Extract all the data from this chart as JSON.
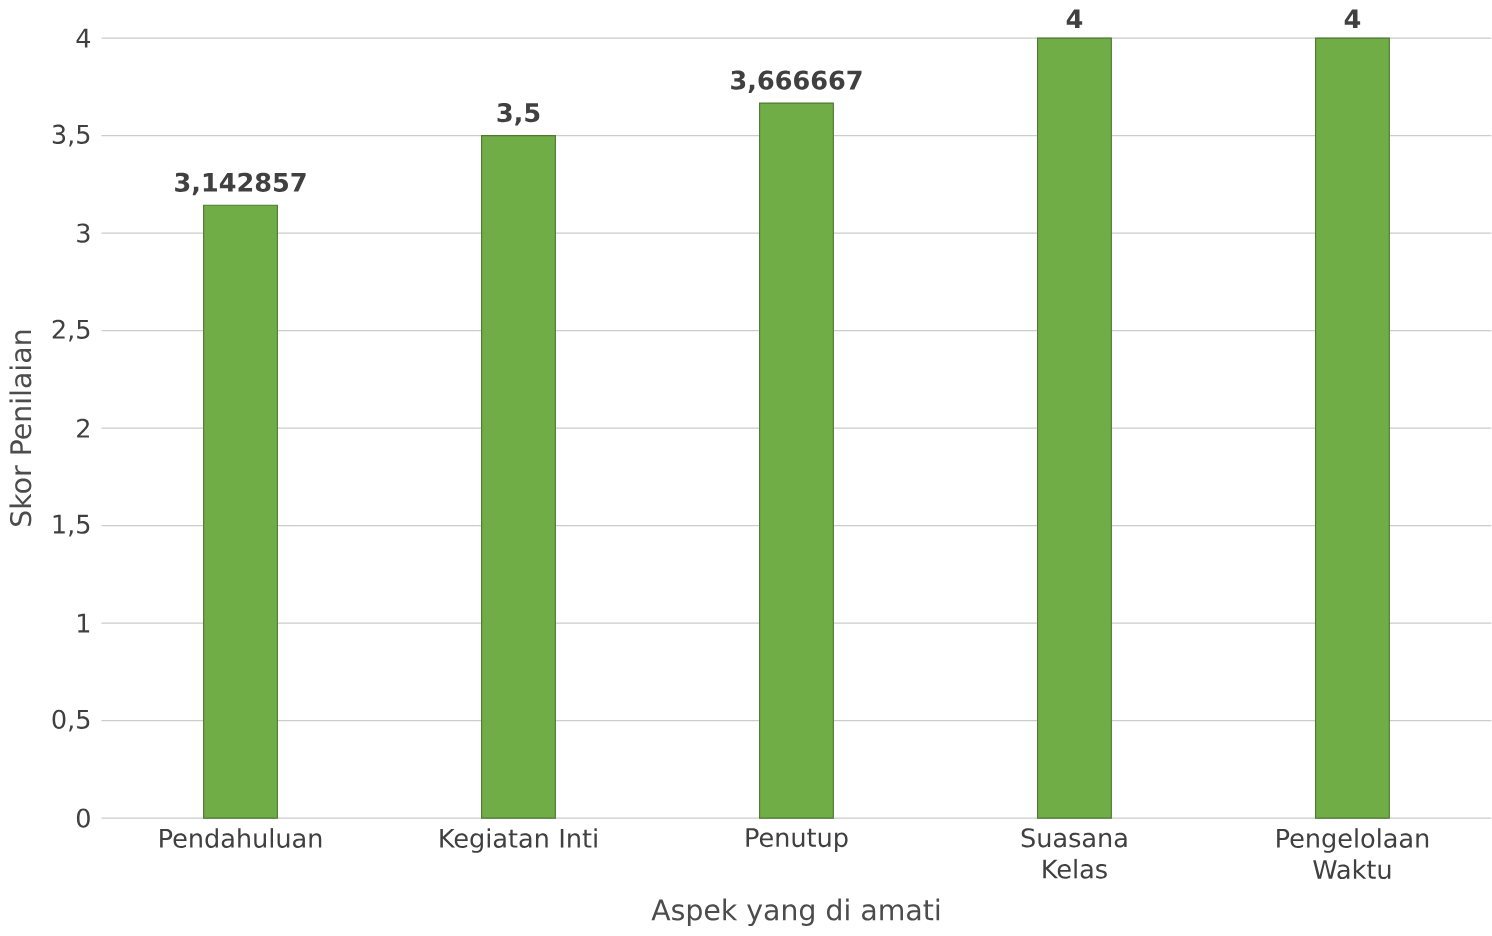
{
  "chart_data": {
    "type": "bar",
    "xlabel": "Aspek yang di amati",
    "ylabel": "Skor Penilaian",
    "categories": [
      "Pendahuluan",
      "Kegiatan Inti",
      "Penutup",
      "Suasana Kelas",
      "Pengelolaan Waktu"
    ],
    "values": [
      3.142857,
      3.5,
      3.666667,
      4,
      4
    ],
    "value_labels": [
      "3,142857",
      "3,5",
      "3,666667",
      "4",
      "4"
    ],
    "color": "#70ad47",
    "ylim": [
      0,
      4
    ],
    "yticks": [
      0,
      {
        "value": 0.5,
        "label": "0,5"
      },
      1,
      {
        "value": 1.5,
        "label": "1,5"
      },
      2,
      {
        "value": 2.5,
        "label": "2,5"
      },
      3,
      {
        "value": 3.5,
        "label": "3,5"
      },
      4
    ],
    "grid": "y"
  }
}
